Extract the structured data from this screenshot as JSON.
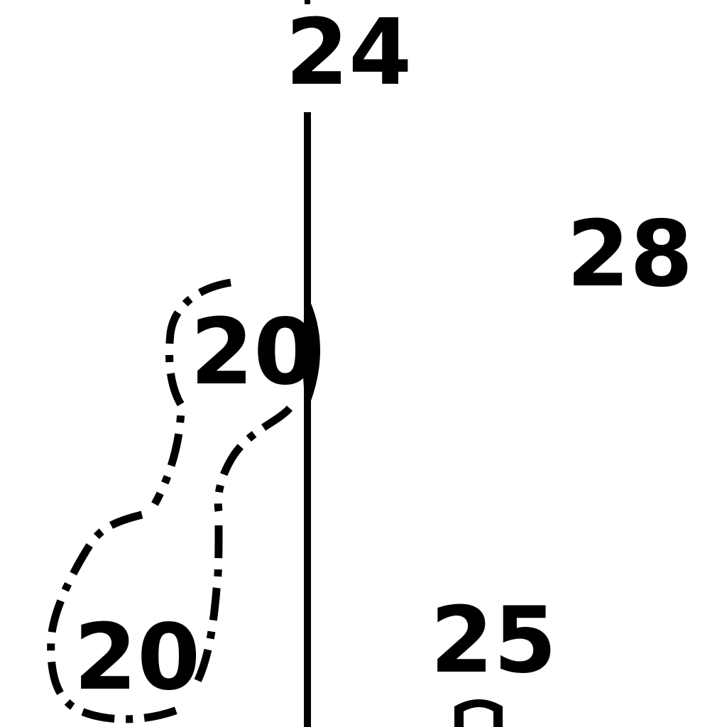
{
  "map": {
    "ink_color": "#000000",
    "background_color": "#ffffff",
    "soundings": [
      {
        "id": "24",
        "label": "24"
      },
      {
        "id": "28",
        "label": "28"
      },
      {
        "id": "20-upper",
        "label": "20"
      },
      {
        "id": "20-lower",
        "label": "20"
      },
      {
        "id": "25",
        "label": "25"
      }
    ],
    "features": {
      "vertical_line": "solid-line",
      "depth_contour": "dash-dot-contour",
      "partial_symbol": "partial-letter-symbol"
    }
  }
}
